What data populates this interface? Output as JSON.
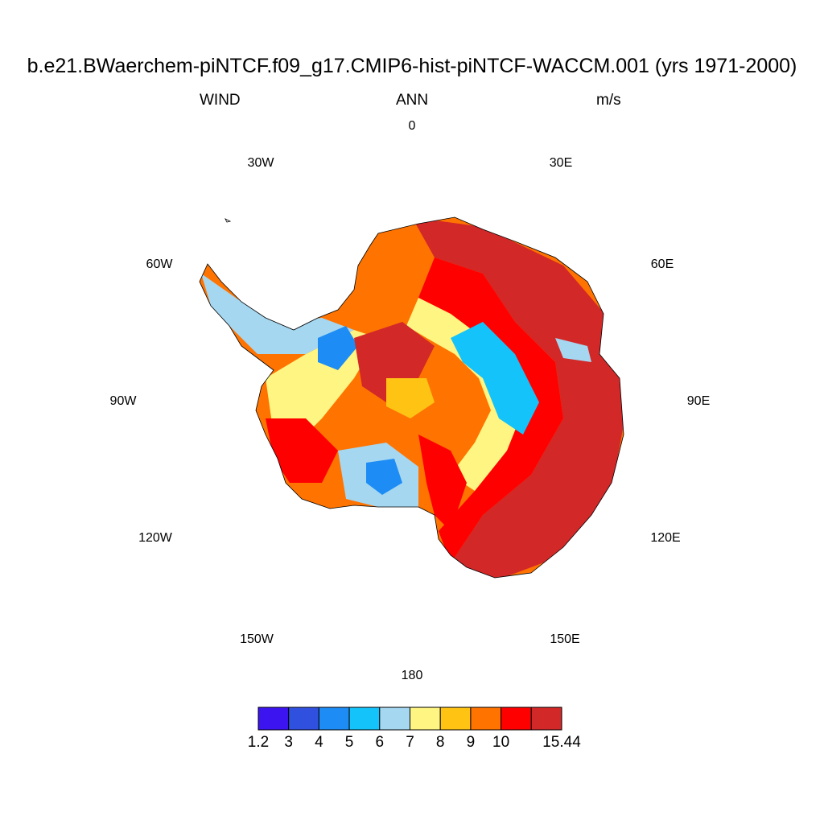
{
  "title": "b.e21.BWaerchem-piNTCF.f09_g17.CMIP6-hist-piNTCF-WACCM.001 (yrs 1971-2000)",
  "variable": "WIND",
  "season": "ANN",
  "units": "m/s",
  "longitude_labels": [
    "0",
    "30E",
    "60E",
    "90E",
    "120E",
    "150E",
    "180",
    "150W",
    "120W",
    "90W",
    "60W",
    "30W"
  ],
  "colorbar": {
    "labels": [
      "1.2",
      "3",
      "4",
      "5",
      "6",
      "7",
      "8",
      "9",
      "10",
      "15.44"
    ],
    "colors": [
      "#3c14f0",
      "#3050e0",
      "#1e8cf5",
      "#14c3fa",
      "#a5d7f0",
      "#fff582",
      "#ffc314",
      "#ff7300",
      "#ff0000",
      "#d22828"
    ]
  }
}
